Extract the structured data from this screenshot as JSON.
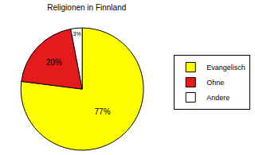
{
  "chart_data": {
    "type": "pie",
    "title": "Religionen in Finnland",
    "categories": [
      "Evangelisch",
      "Ohne",
      "Andere"
    ],
    "values": [
      77,
      20,
      3
    ],
    "value_labels": [
      "77%",
      "20%",
      "3%"
    ],
    "colors": [
      "#ffff00",
      "#e41a1c",
      "#ffffff"
    ],
    "data_labels": true,
    "legend": "right"
  }
}
